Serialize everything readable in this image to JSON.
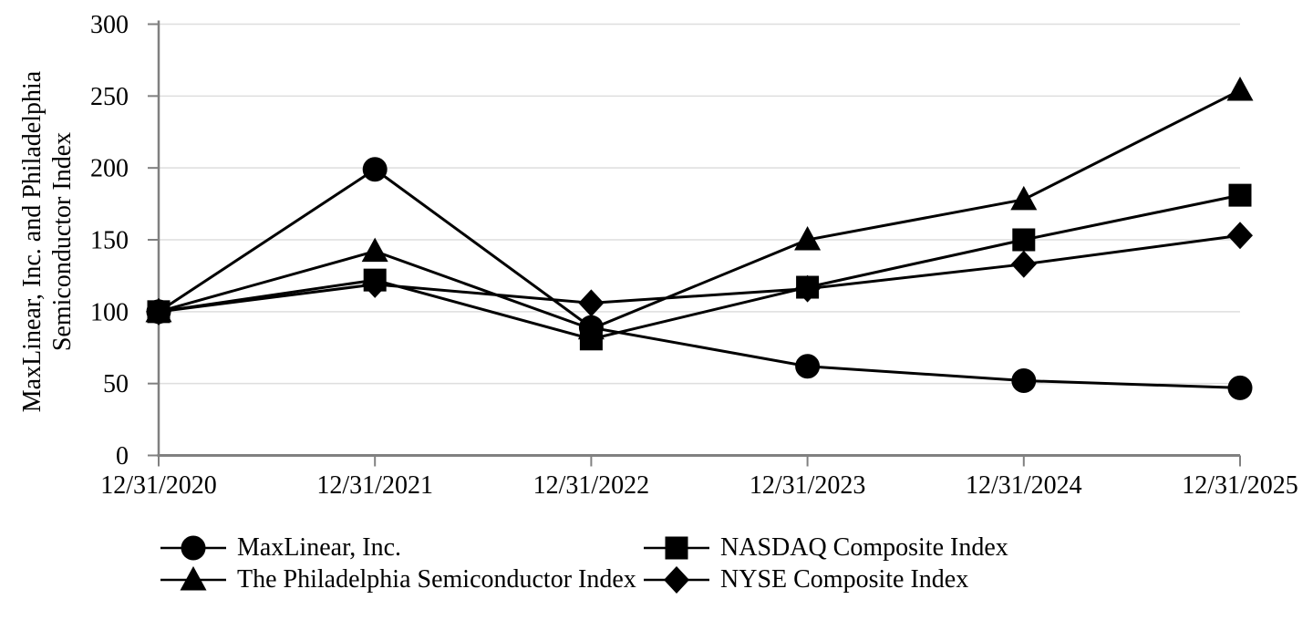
{
  "chart_data": {
    "type": "line",
    "title": "",
    "categories": [
      "12/31/2020",
      "12/31/2021",
      "12/31/2022",
      "12/31/2023",
      "12/31/2024",
      "12/31/2025"
    ],
    "series": [
      {
        "name": "MaxLinear, Inc.",
        "marker": "circle",
        "values": [
          100,
          199,
          89,
          62,
          52,
          47
        ]
      },
      {
        "name": "NASDAQ Composite Index",
        "marker": "square",
        "values": [
          100,
          122,
          81,
          117,
          150,
          181
        ]
      },
      {
        "name": "The Philadelphia Semiconductor Index",
        "marker": "triangle",
        "values": [
          100,
          142,
          88,
          150,
          178,
          254
        ]
      },
      {
        "name": "NYSE Composite Index",
        "marker": "diamond",
        "values": [
          100,
          119,
          106,
          116,
          133,
          153
        ]
      }
    ],
    "ylabel_lines": [
      "MaxLinear, Inc. and Philadelphia",
      "Semiconductor Index"
    ],
    "xlabel": "",
    "ylim": [
      0,
      300
    ],
    "yticks": [
      0,
      50,
      100,
      150,
      200,
      250,
      300
    ],
    "grid": true,
    "legend_position": "bottom",
    "colors": {
      "series": "#000000",
      "axis": "#808080",
      "gridline": "#dedede",
      "text": "#000000",
      "background": "#ffffff"
    }
  }
}
